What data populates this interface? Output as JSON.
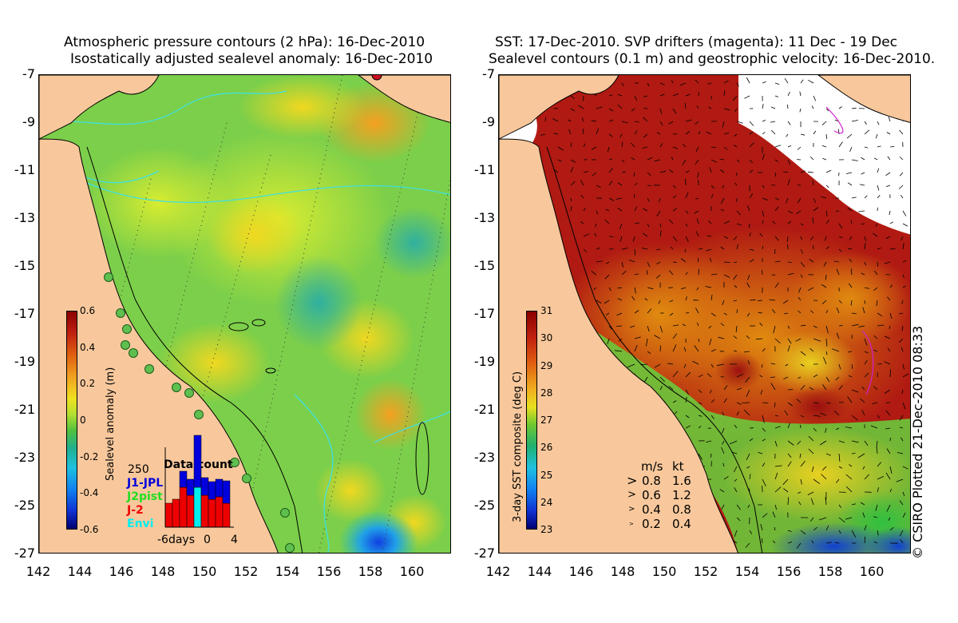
{
  "left": {
    "title_line1": "Atmospheric pressure contours (2 hPa): 16-Dec-2010",
    "title_line2": "Isostatically adjusted sealevel anomaly: 16-Dec-2010",
    "colorbar_title": "Sealevel anomaly (m)",
    "colorbar_ticks": [
      "0.6",
      "0.4",
      "0.2",
      "0",
      "-0.2",
      "-0.4",
      "-0.6"
    ],
    "inset": {
      "title": "Data count",
      "ymax_label": "250",
      "legend": [
        {
          "label": "J1-JPL",
          "color": "#0000dd"
        },
        {
          "label": "J2pist",
          "color": "#22dd22"
        },
        {
          "label": "J-2",
          "color": "#ee0000"
        },
        {
          "label": "Envi",
          "color": "#00eeee"
        }
      ],
      "x_labels": [
        "-6days",
        "0",
        "4"
      ]
    }
  },
  "right": {
    "title_line1": "SST: 17-Dec-2010. SVP drifters (magenta): 11 Dec - 19 Dec",
    "title_line2": "Sealevel contours (0.1 m) and geostrophic velocity: 16-Dec-2010.",
    "colorbar_title": "3-day SST composite (deg C)",
    "colorbar_ticks": [
      "31",
      "30",
      "29",
      "28",
      "27",
      "26",
      "25",
      "24",
      "23"
    ],
    "velocity_legend": {
      "header_ms": "m/s",
      "header_kt": "kt",
      "rows": [
        {
          "ms": "0.8",
          "kt": "1.6"
        },
        {
          "ms": "0.6",
          "kt": "1.2"
        },
        {
          "ms": "0.4",
          "kt": "0.8"
        },
        {
          "ms": "0.2",
          "kt": "0.4"
        }
      ]
    }
  },
  "axes": {
    "lat_ticks": [
      "-7",
      "-9",
      "-11",
      "-13",
      "-15",
      "-17",
      "-19",
      "-21",
      "-23",
      "-25",
      "-27"
    ],
    "lon_ticks": [
      "142",
      "144",
      "146",
      "148",
      "150",
      "152",
      "154",
      "156",
      "158",
      "160"
    ]
  },
  "copyright": "© CSIRO Plotted 21-Dec-2010 08:33",
  "colors": {
    "land": "#f8c89c",
    "ocean_mid": "#8fd846",
    "sst_warm": "#b01010",
    "coast_line": "#000000",
    "isobath": "#40e0e0"
  }
}
